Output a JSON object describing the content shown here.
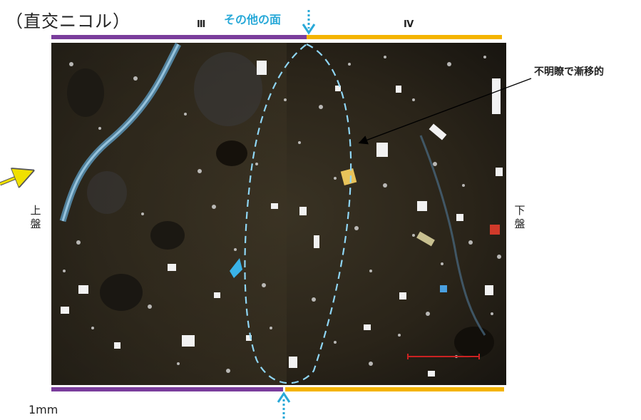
{
  "title": "（直交ニコル）",
  "other_face_label": "その他の面",
  "zones": {
    "left": "Ⅲ",
    "right": "Ⅳ"
  },
  "annotation": "不明瞭で漸移的",
  "upper_wall": "上盤",
  "lower_wall": "下盤",
  "scale_label": "1mm",
  "colors": {
    "zone3": "#7a3d9c",
    "zone4": "#f4b400",
    "boundary": "#7fd4f4",
    "arrow_yellow": "#f0e000",
    "scale_bar": "#cc2222"
  }
}
